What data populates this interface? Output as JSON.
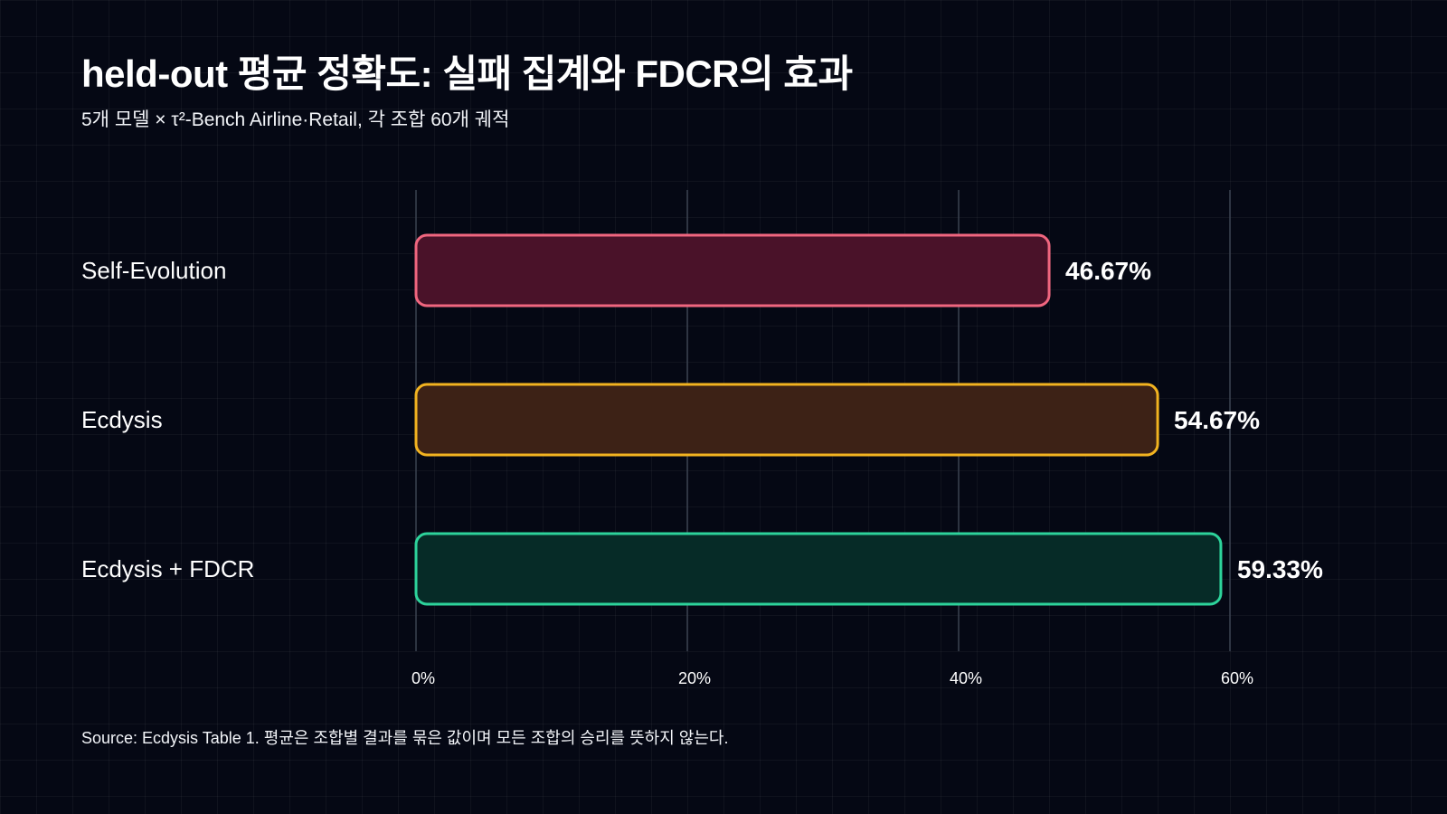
{
  "header": {
    "title": "held-out 평균 정확도: 실패 집계와 FDCR의 효과",
    "subtitle": "5개 모델 × τ²-Bench Airline·Retail, 각 조합 60개 궤적"
  },
  "footer": {
    "source": "Source: Ecdysis Table 1. 평균은 조합별 결과를 묶은 값이며 모든 조합의 승리를 뜻하지 않는다."
  },
  "chart_data": {
    "type": "bar",
    "orientation": "horizontal",
    "categories": [
      "Self-Evolution",
      "Ecdysis",
      "Ecdysis + FDCR"
    ],
    "values": [
      46.67,
      54.67,
      59.33
    ],
    "value_labels": [
      "46.67%",
      "54.67%",
      "59.33%"
    ],
    "xlim": [
      0,
      60
    ],
    "xticks": [
      0,
      20,
      40,
      60
    ],
    "xtick_labels": [
      "0%",
      "20%",
      "40%",
      "60%"
    ],
    "xlabel": "",
    "ylabel": "",
    "grid": true,
    "colors": {
      "stroke": [
        "#f0667f",
        "#f2b320",
        "#2dd39b"
      ],
      "fill": [
        "#4a1229",
        "#3d2216",
        "#062b27"
      ],
      "gridline": "#3b4350"
    }
  }
}
